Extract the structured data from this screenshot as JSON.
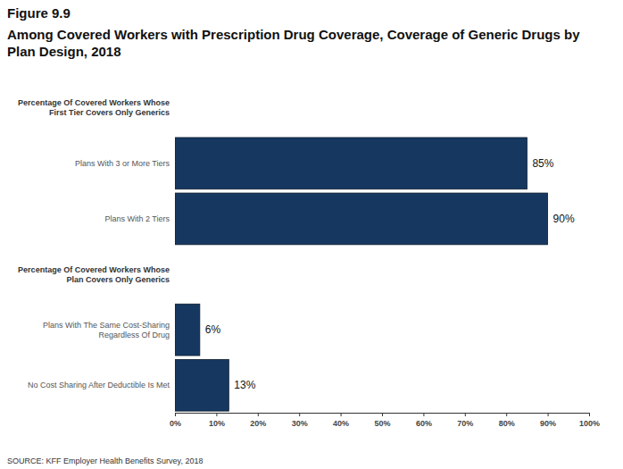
{
  "chart_data": {
    "type": "bar",
    "orientation": "horizontal",
    "title": "Figure 9.9",
    "subtitle": "Among Covered Workers with Prescription Drug Coverage, Coverage of Generic Drugs by Plan Design, 2018",
    "annotations": [
      "SOURCE: KFF Employer Health Benefits Survey, 2018"
    ],
    "categories": [
      "Percentage Of Covered Workers Whose First Tier Covers Only Generics",
      "Plans With 3 or More Tiers",
      "Plans With 2 Tiers",
      "Percentage Of Covered Workers Whose Plan Covers Only Generics",
      "Plans With The Same Cost-Sharing Regardless Of Drug",
      "No Cost Sharing After Deductible Is Met"
    ],
    "values": [
      null,
      85,
      90,
      null,
      6,
      13
    ],
    "value_labels": [
      null,
      "85%",
      "90%",
      null,
      "6%",
      "13%"
    ],
    "data_labels": true,
    "color": "#163860",
    "xlim": [
      0,
      100
    ],
    "xticks": [
      {
        "value": 0,
        "label": "0%"
      },
      {
        "value": 10,
        "label": "10%"
      },
      {
        "value": 20,
        "label": "20%"
      },
      {
        "value": 30,
        "label": "30%"
      },
      {
        "value": 40,
        "label": "40%"
      },
      {
        "value": 50,
        "label": "50%"
      },
      {
        "value": 60,
        "label": "60%"
      },
      {
        "value": 70,
        "label": "70%"
      },
      {
        "value": 80,
        "label": "80%"
      },
      {
        "value": 90,
        "label": "90%"
      },
      {
        "value": 100,
        "label": "100%"
      }
    ],
    "grid": false
  }
}
